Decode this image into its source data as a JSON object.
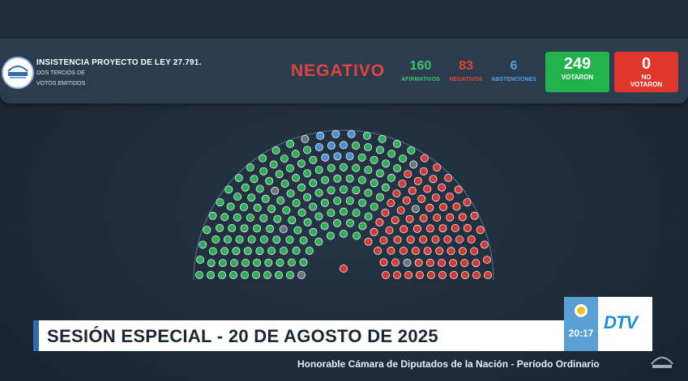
{
  "header": {
    "title": "INSISTENCIA PROYECTO DE LEY 27.791.",
    "subtitle_line1": "DOS TERCIOS DE",
    "subtitle_line2": "VOTOS EMITIDOS",
    "result": "NEGATIVO"
  },
  "counts": {
    "affirmative": {
      "value": "160",
      "label": "AFIRMATIVOS",
      "color": "#3fc46a"
    },
    "negative": {
      "value": "83",
      "label": "NEGATIVOS",
      "color": "#e2443a"
    },
    "abstentions": {
      "value": "6",
      "label": "ABSTENCIONES",
      "color": "#4aa3e0"
    }
  },
  "totals": {
    "voted": {
      "value": "249",
      "label": "VOTARON",
      "color": "#22b24c"
    },
    "not_voted": {
      "value": "0",
      "label_line1": "NO",
      "label_line2": "VOTARON",
      "color": "#e0362b"
    }
  },
  "hemicycle": {
    "seat_colors": {
      "affirmative": "#2fae57",
      "negative": "#d43a33",
      "abstention": "#4a8fd0",
      "absent": "#6b7580"
    }
  },
  "banner": {
    "text": "SESIÓN ESPECIAL - 20 DE AGOSTO DE 2025",
    "clock": "20:17",
    "channel_logo": "DTV",
    "subtext": "Honorable Cámara de Diputados de la Nación - Período Ordinario"
  },
  "icons": {
    "logo": "diputados-logo-icon",
    "sun": "sun-of-may-icon",
    "watermark": "diputados-watermark-icon"
  }
}
